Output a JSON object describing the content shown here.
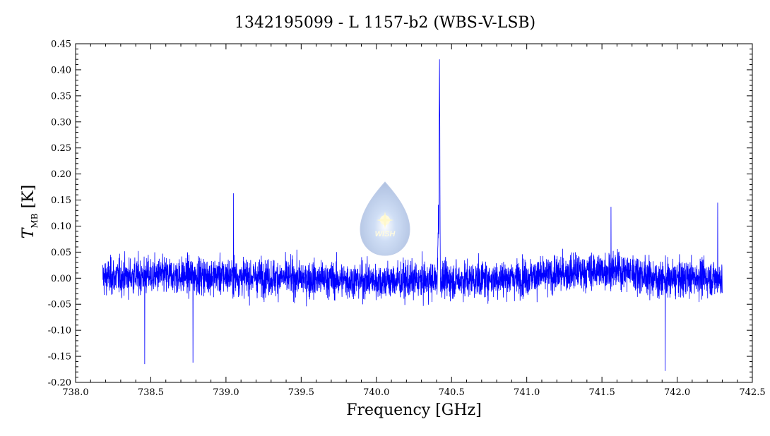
{
  "chart_data": {
    "type": "line",
    "title": "1342195099 - L 1157-b2 (WBS-V-LSB)",
    "xlabel": "Frequency [GHz]",
    "ylabel_main": "T",
    "ylabel_sub": "MB",
    "ylabel_unit": "[K]",
    "xlim": [
      738.0,
      742.5
    ],
    "ylim": [
      -0.2,
      0.45
    ],
    "x_ticks": [
      "738.0",
      "738.5",
      "739.0",
      "739.5",
      "740.0",
      "740.5",
      "741.0",
      "741.5",
      "742.0",
      "742.5"
    ],
    "y_ticks": [
      "-0.20",
      "-0.15",
      "-0.10",
      "-0.05",
      "0.00",
      "0.05",
      "0.10",
      "0.15",
      "0.20",
      "0.25",
      "0.30",
      "0.35",
      "0.40",
      "0.45"
    ],
    "line_color": "#0000ff",
    "grid": false,
    "watermark_text": "WISH",
    "series": [
      {
        "x_range": [
          738.18,
          742.3
        ],
        "noise_rms": 0.045,
        "peak": {
          "x": 740.42,
          "y": 0.42
        },
        "extremes": [
          {
            "x": 738.46,
            "y": -0.165
          },
          {
            "x": 738.78,
            "y": -0.162
          },
          {
            "x": 739.05,
            "y": 0.163
          },
          {
            "x": 741.92,
            "y": -0.178
          },
          {
            "x": 741.56,
            "y": 0.137
          },
          {
            "x": 742.27,
            "y": 0.145
          }
        ]
      }
    ]
  }
}
